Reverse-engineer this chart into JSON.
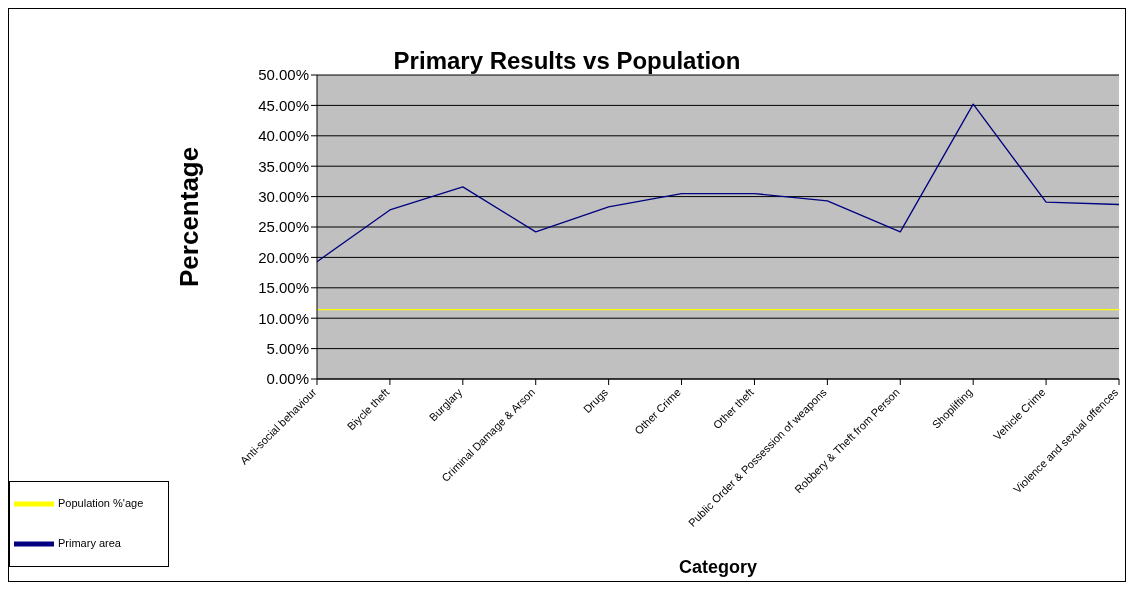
{
  "chart_data": {
    "type": "line",
    "title": "Primary Results vs Population",
    "xlabel": "Category",
    "ylabel": "Percentage",
    "categories": [
      "Anti-social behaviour",
      "Biycle theft",
      "Burglary",
      "Criminal Damage & Arson",
      "Drugs",
      "Other Crime",
      "Other theft",
      "Public Order & Possession of weapons",
      "Robbery & Theft from Person",
      "Shoplifting",
      "Vehicle Crime",
      "Violence and sexual offences"
    ],
    "series": [
      {
        "name": "Primary area",
        "color": "#000080",
        "values": [
          19.3,
          27.8,
          31.6,
          24.2,
          28.3,
          30.5,
          30.5,
          29.3,
          24.2,
          45.2,
          29.1,
          28.7
        ]
      },
      {
        "name": "Population %'age",
        "color": "#ffff00",
        "values": [
          11.4,
          11.4,
          11.4,
          11.4,
          11.4,
          11.4,
          11.4,
          11.4,
          11.4,
          11.4,
          11.4,
          11.4
        ]
      }
    ],
    "ylim": [
      0,
      50
    ],
    "yticks": [
      {
        "value": 0,
        "label": "0.00%"
      },
      {
        "value": 5,
        "label": "5.00%"
      },
      {
        "value": 10,
        "label": "10.00%"
      },
      {
        "value": 15,
        "label": "15.00%"
      },
      {
        "value": 20,
        "label": "20.00%"
      },
      {
        "value": 25,
        "label": "25.00%"
      },
      {
        "value": 30,
        "label": "30.00%"
      },
      {
        "value": 35,
        "label": "35.00%"
      },
      {
        "value": 40,
        "label": "40.00%"
      },
      {
        "value": 45,
        "label": "45.00%"
      },
      {
        "value": 50,
        "label": "50.00%"
      }
    ],
    "grid": "y",
    "legend": "bottom left",
    "marker": "none",
    "line_style": "solid"
  }
}
